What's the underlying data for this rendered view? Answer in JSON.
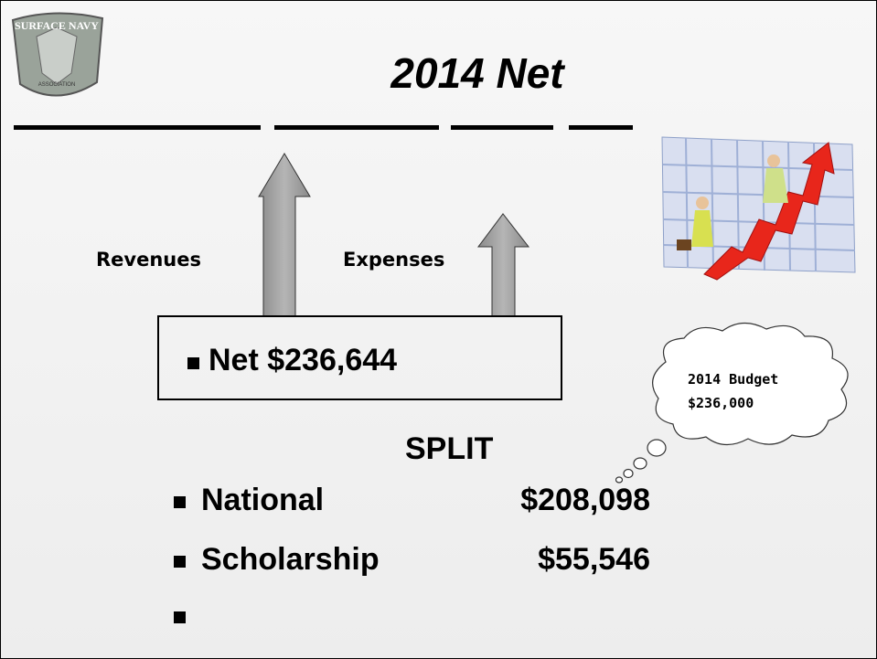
{
  "logo": {
    "top": "SURFACE NAVY",
    "bottom": "ASSOCIATION"
  },
  "title": "2014 Net",
  "arrows": {
    "left": "Revenues",
    "right": "Expenses"
  },
  "net_box": "Net $236,644",
  "callout": {
    "line1": "2014 Budget",
    "line2": "$236,000"
  },
  "split": {
    "heading": "SPLIT",
    "items": [
      {
        "name": "National",
        "amount": "$208,098"
      },
      {
        "name": "Scholarship",
        "amount": "$55,546"
      }
    ]
  }
}
